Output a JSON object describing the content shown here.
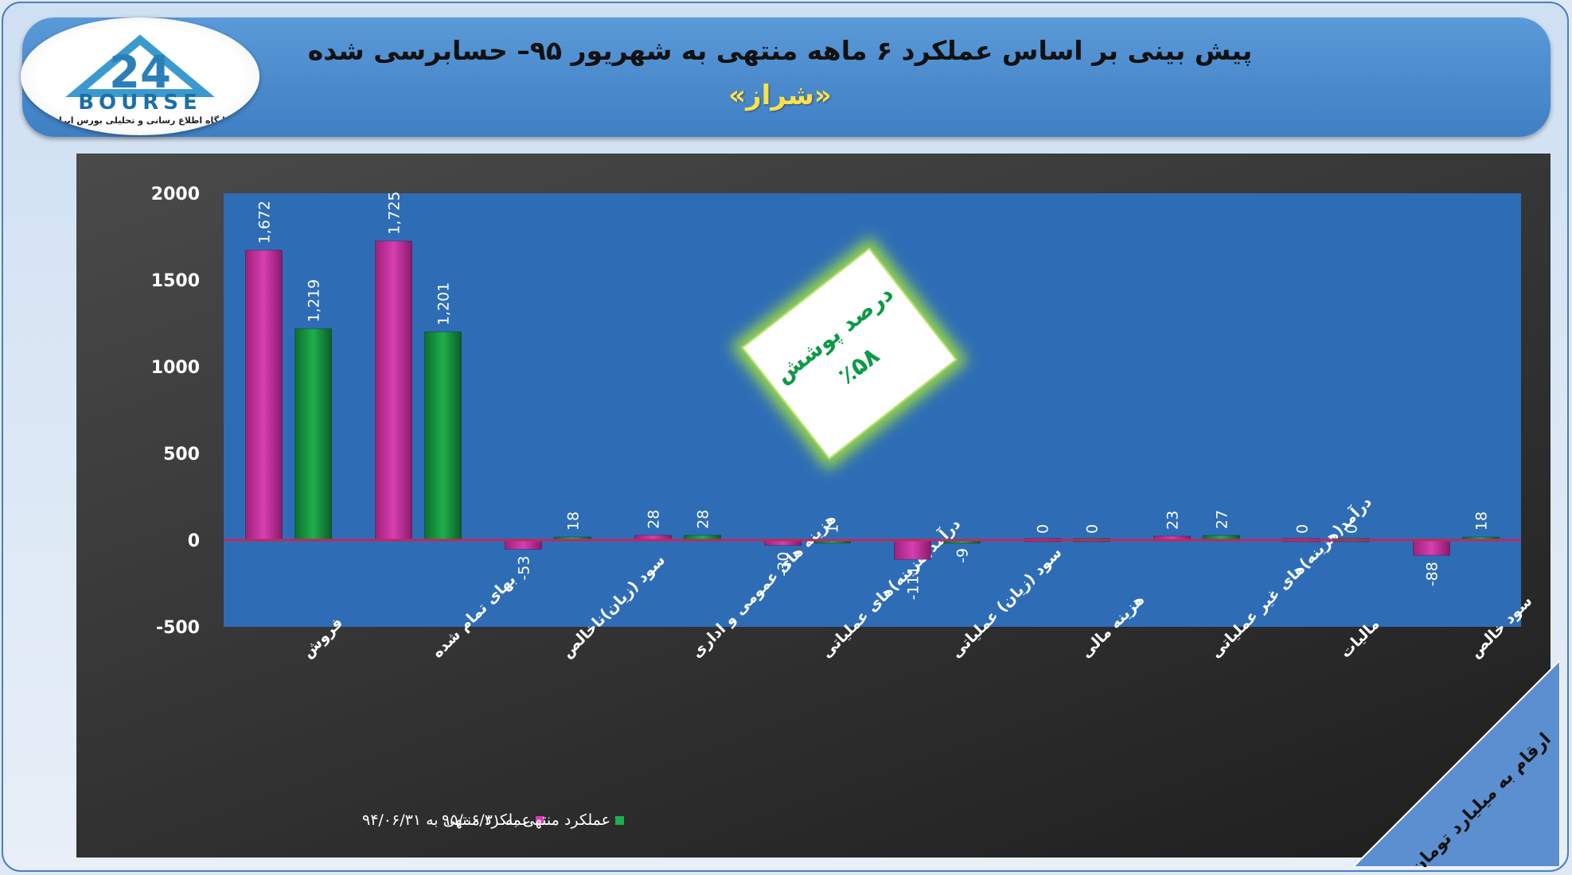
{
  "header": {
    "title": "پیش بینی بر اساس عملکرد ۶ ماهه منتهی به شهریور ۹۵– حسابرسی شده",
    "subtitle": "«شراز»"
  },
  "logo": {
    "brand": "BOURSE",
    "tagline": "پایگاه اطلاع رسانی و تحلیلی بورس ایران"
  },
  "badge": {
    "line1": "درصد پوشش",
    "line2": "٪۵۸"
  },
  "units_note": "ارقام به میلیارد تومان",
  "colors": {
    "series_1": "#d63fb0",
    "series_2": "#1fae4d",
    "plot_bg": "#2e6db6",
    "axis_zero": "#c0285f"
  },
  "chart_data": {
    "type": "bar",
    "categories": [
      "فروش",
      "بهای تمام شده",
      "سود (زیان)ناخالص",
      "هزینه های عمومی و اداری",
      "درآمد(هزینه)های عملیاتی",
      "سود (زیان) عملیاتی",
      "هزینه مالی",
      "درآمد(هزینه)های غیر عملیاتی",
      "مالیات",
      "سود خالص"
    ],
    "series": [
      {
        "name": "عملکرد منتهی به ۹۴/۰۶/۳۱",
        "values": [
          1672,
          1725,
          -53,
          28,
          -30,
          -111,
          0,
          23,
          0,
          -88
        ],
        "labels": [
          "1,672",
          "1,725",
          "-53",
          "28",
          "-30",
          "-111",
          "0",
          "23",
          "0",
          "-88"
        ]
      },
      {
        "name": "عملکرد منتهی به ۹۵/۰۶/۳۱",
        "values": [
          1219,
          1201,
          18,
          28,
          1,
          -9,
          0,
          27,
          0,
          18
        ],
        "labels": [
          "1,219",
          "1,201",
          "18",
          "28",
          "1",
          "-9",
          "0",
          "27",
          "0",
          "18"
        ]
      }
    ],
    "y_ticks": [
      "2000",
      "1500",
      "1000",
      "500",
      "0",
      "-500"
    ],
    "ylim": [
      -500,
      2000
    ],
    "grid": false,
    "legend": "bottom-left"
  }
}
